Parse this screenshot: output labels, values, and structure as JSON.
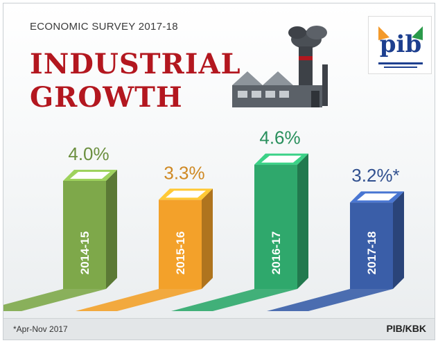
{
  "header": {
    "kicker": "ECONOMIC SURVEY 2017-18",
    "title_line1": "INDUSTRIAL",
    "title_line2": "GROWTH"
  },
  "logo": {
    "text": "pib",
    "icon": "pib-logo-icon"
  },
  "illustration": {
    "icon": "factory-icon"
  },
  "chart_data": {
    "type": "bar",
    "categories": [
      "2014-15",
      "2015-16",
      "2016-17",
      "2017-18"
    ],
    "values": [
      4.0,
      3.3,
      4.6,
      3.2
    ],
    "value_labels": [
      "4.0%",
      "3.3%",
      "4.6%",
      "3.2%*"
    ],
    "colors": [
      "#7ea84a",
      "#f3a12a",
      "#2fa86c",
      "#3a5ea8"
    ],
    "ylim": [
      0,
      5
    ],
    "grid": false,
    "legend": "none"
  },
  "footer": {
    "footnote": "*Apr-Nov 2017",
    "credit": "PIB/KBK"
  }
}
